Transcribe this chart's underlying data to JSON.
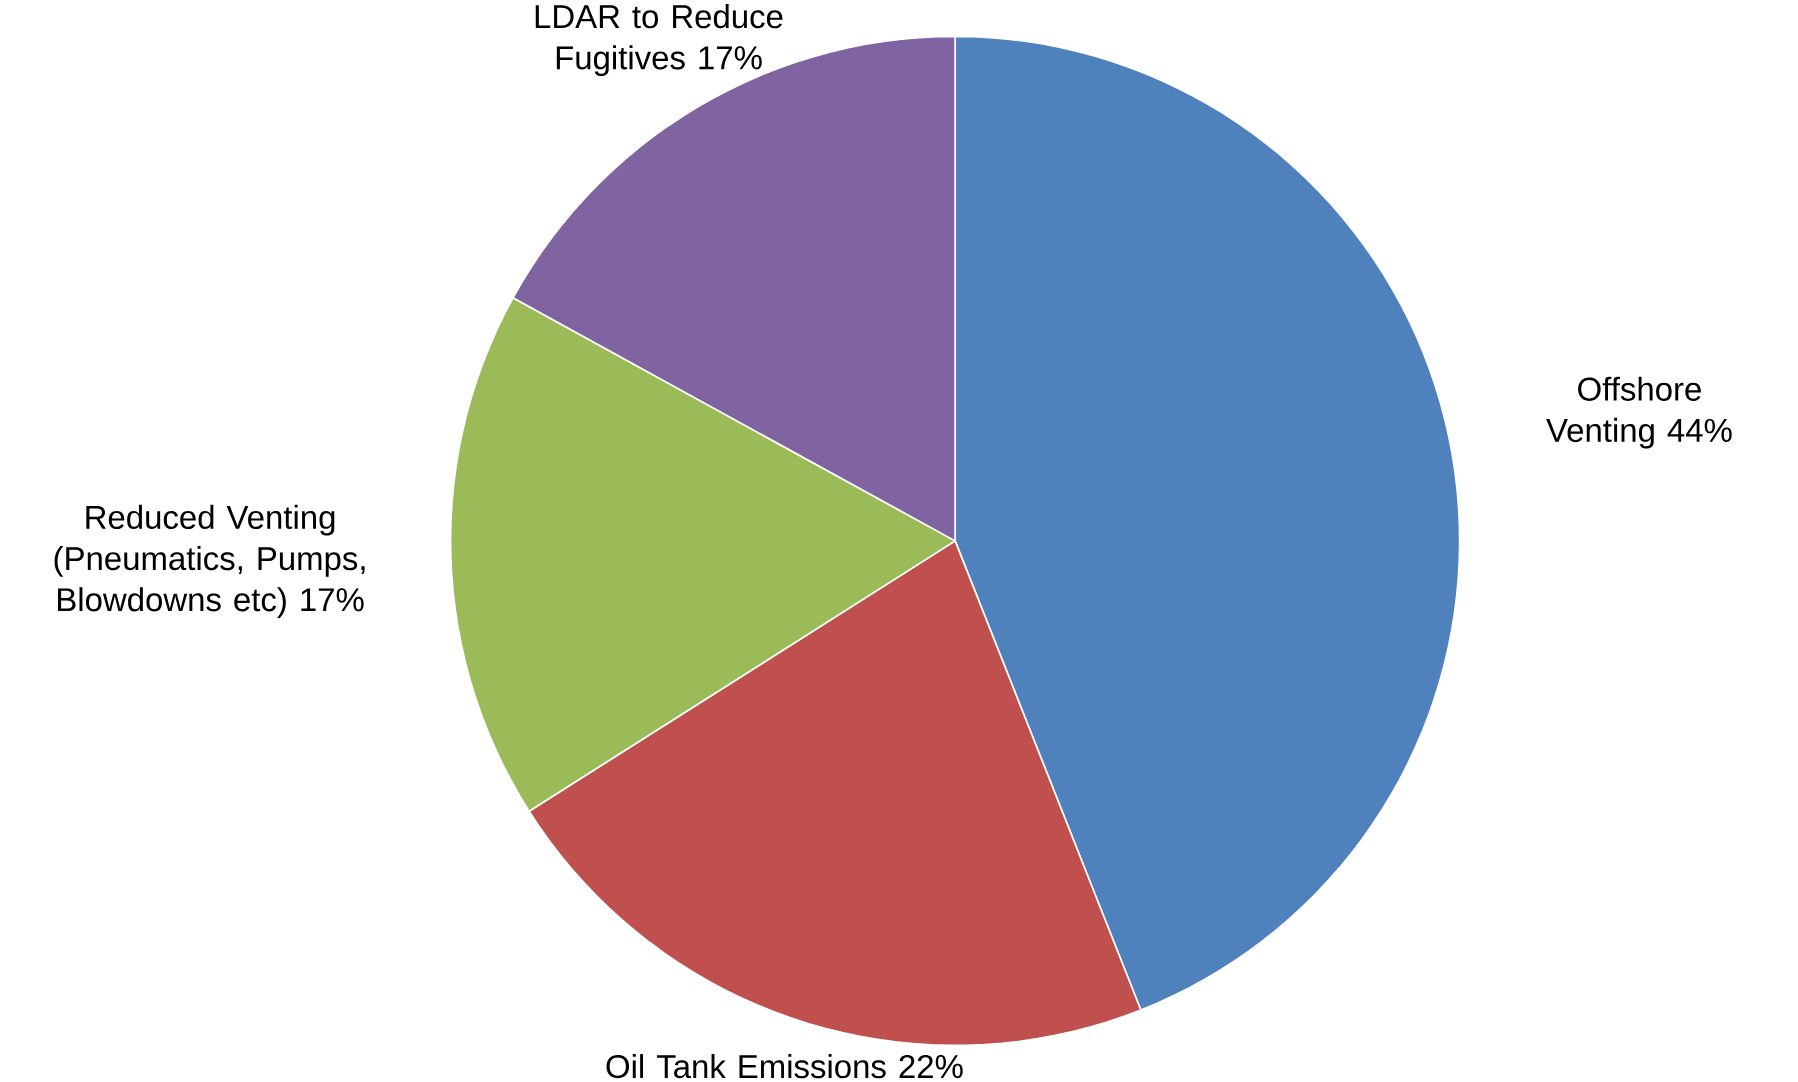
{
  "chart_data": {
    "type": "pie",
    "categories": [
      "Offshore Venting",
      "Oil Tank Emissions",
      "Reduced Venting (Pneumatics, Pumps, Blowdowns etc)",
      "LDAR to Reduce Fugitives"
    ],
    "values": [
      44,
      22,
      17,
      17
    ],
    "value_labels": [
      "44%",
      "22%",
      "17%",
      "17%"
    ],
    "colors": [
      "#4f81bd",
      "#c0504d",
      "#9bbb59",
      "#8064a2"
    ]
  }
}
